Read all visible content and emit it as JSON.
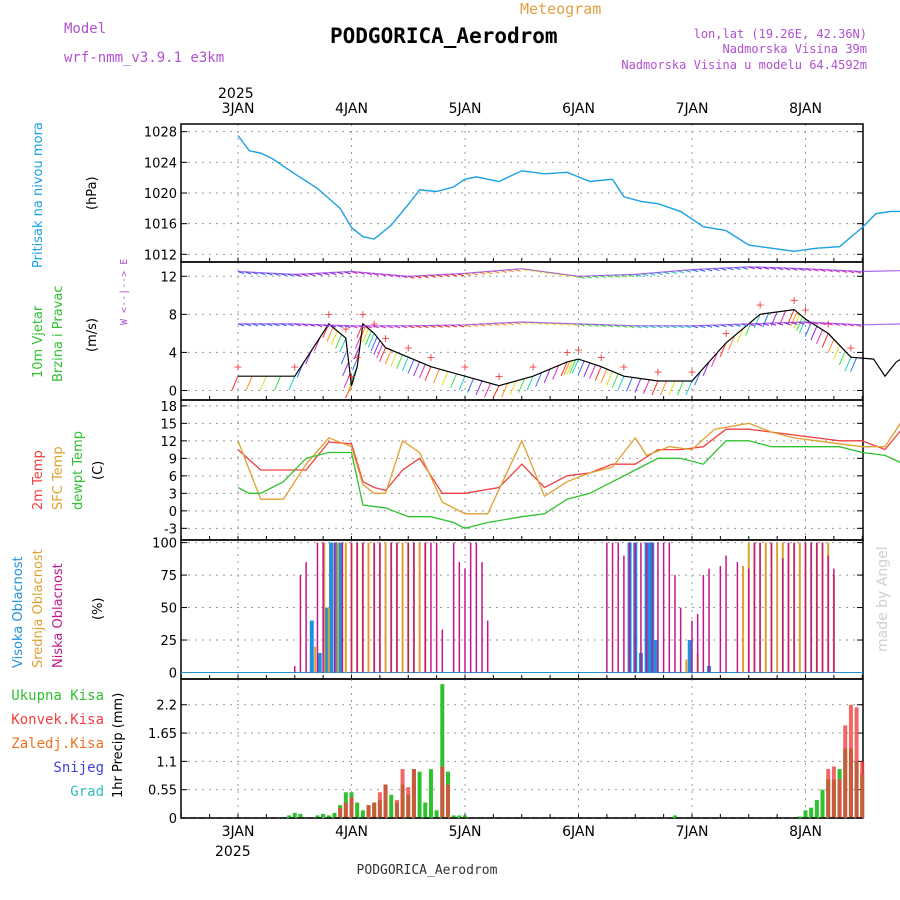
{
  "header": {
    "model_label": "Model",
    "model_name": "wrf-nmm_v3.9.1 e3km",
    "meteogram_label": "Meteogram",
    "station": "PODGORICA_Aerodrom",
    "lonlat": "lon,lat (19.26E, 42.36N)",
    "elevation": "Nadmorska Visina 39m",
    "model_elevation": "Nadmorska Visina u modelu 64.4592m",
    "year_top": "2025",
    "year_bottom": "2025",
    "footer_station": "PODGORICA_Aerodrom",
    "credit": "made by Angel"
  },
  "days": [
    "3JAN",
    "4JAN",
    "5JAN",
    "6JAN",
    "7JAN",
    "8JAN"
  ],
  "colors": {
    "pressure": "#1ba1e2",
    "temp2m": "#f04040",
    "sfc": "#e0a030",
    "dewpt": "#30c030",
    "high": "#1e90e0",
    "mid": "#e0a030",
    "low": "#c0188c",
    "total": "#30c030",
    "conv": "#f04040",
    "frz": "#f07020",
    "snow": "#4040e0",
    "hail": "#30c0c0",
    "windspd": "#000000",
    "windline": "#8a2be2"
  },
  "chart_data": [
    {
      "type": "line",
      "id": "pressure",
      "ylabel_title": "Pritisak na nivou mora",
      "ylabel_unit": "(hPa)",
      "ylim": [
        1011,
        1029
      ],
      "yticks": [
        1012,
        1016,
        1020,
        1024,
        1028
      ],
      "x": [
        0,
        0.1,
        0.2,
        0.3,
        0.5,
        0.7,
        0.9,
        1.0,
        1.1,
        1.2,
        1.35,
        1.5,
        1.6,
        1.75,
        1.9,
        2.0,
        2.1,
        2.3,
        2.5,
        2.7,
        2.9,
        3.1,
        3.3,
        3.4,
        3.55,
        3.7,
        3.9,
        4.1,
        4.3,
        4.5,
        4.7,
        4.9,
        5.1,
        5.3,
        5.5,
        5.62,
        5.75,
        5.87
      ],
      "values": [
        1027.5,
        1025.5,
        1025.2,
        1024.5,
        1022.5,
        1020.6,
        1018.0,
        1015.5,
        1014.3,
        1014.0,
        1015.8,
        1018.5,
        1020.4,
        1020.2,
        1020.8,
        1021.8,
        1022.1,
        1021.5,
        1022.9,
        1022.5,
        1022.7,
        1021.5,
        1021.8,
        1019.5,
        1018.9,
        1018.6,
        1017.6,
        1015.6,
        1015.1,
        1013.2,
        1012.8,
        1012.4,
        1012.8,
        1013.0,
        1015.5,
        1017.3,
        1017.6,
        1017.6
      ]
    },
    {
      "type": "wind",
      "id": "wind",
      "ylabel_title": "10m Vjetar Brzina i Pravac",
      "ylabel_unit": "(m/s)",
      "compass": "W <--|--> E",
      "ylim": [
        -1,
        13.5
      ],
      "yticks": [
        0,
        4,
        8,
        12
      ],
      "series": [
        {
          "name": "speed",
          "x": [
            0,
            0.5,
            0.8,
            0.95,
            1.0,
            1.05,
            1.1,
            1.2,
            1.3,
            1.5,
            1.7,
            2.0,
            2.3,
            2.6,
            2.9,
            3.0,
            3.2,
            3.4,
            3.7,
            4.0,
            4.3,
            4.6,
            4.9,
            5.0,
            5.2,
            5.4,
            5.6,
            5.7,
            5.8,
            5.87
          ],
          "values": [
            1.5,
            1.5,
            7,
            5.5,
            0.5,
            2.5,
            7,
            6,
            4.5,
            3.5,
            2.5,
            1.5,
            0.5,
            1.5,
            3,
            3.3,
            2.5,
            1.5,
            1,
            1,
            5,
            8,
            8.5,
            7.5,
            6,
            3.5,
            3.3,
            1.5,
            3,
            3.5
          ]
        },
        {
          "name": "upper",
          "x": [
            0,
            0.5,
            1.0,
            1.5,
            2.0,
            2.5,
            3.0,
            3.5,
            4.0,
            4.5,
            5.0,
            5.5,
            5.87
          ],
          "values": [
            12.5,
            12.2,
            12.5,
            12.0,
            12.3,
            12.8,
            12.0,
            12.2,
            12.7,
            13.0,
            12.8,
            12.5,
            12.6
          ]
        },
        {
          "name": "middle",
          "x": [
            0,
            0.5,
            1.0,
            1.5,
            2.0,
            2.5,
            3.0,
            3.5,
            4.0,
            4.5,
            5.0,
            5.5,
            5.87
          ],
          "values": [
            7.0,
            7.0,
            6.8,
            6.8,
            6.9,
            7.2,
            7.0,
            6.8,
            6.8,
            7.0,
            7.2,
            6.9,
            7.0
          ]
        }
      ]
    },
    {
      "type": "line",
      "id": "temperature",
      "ylabel_title": [
        "2m Temp",
        "SFC Temp",
        "dewpt Temp"
      ],
      "ylabel_unit": "(C)",
      "ylim": [
        -5,
        19
      ],
      "yticks": [
        -3,
        0,
        3,
        6,
        9,
        12,
        15,
        18
      ],
      "series": [
        {
          "name": "2m Temp",
          "x": [
            0,
            0.2,
            0.4,
            0.6,
            0.8,
            1.0,
            1.1,
            1.2,
            1.3,
            1.45,
            1.6,
            1.8,
            2.0,
            2.3,
            2.5,
            2.7,
            2.9,
            3.1,
            3.3,
            3.5,
            3.7,
            3.9,
            4.1,
            4.3,
            4.5,
            4.7,
            4.9,
            5.1,
            5.3,
            5.5,
            5.7,
            5.87
          ],
          "values": [
            10.5,
            7,
            7,
            7,
            11.8,
            11.5,
            5,
            4,
            3.5,
            7,
            9,
            3,
            3,
            4,
            8,
            4,
            6,
            6.5,
            8,
            8,
            10.5,
            10.5,
            11,
            14,
            14,
            13.5,
            13,
            12.5,
            12,
            12,
            10.5,
            14.5
          ]
        },
        {
          "name": "SFC Temp",
          "x": [
            0,
            0.2,
            0.4,
            0.6,
            0.8,
            1.0,
            1.1,
            1.2,
            1.3,
            1.45,
            1.6,
            1.8,
            2.0,
            2.2,
            2.5,
            2.7,
            2.9,
            3.1,
            3.3,
            3.5,
            3.6,
            3.8,
            4.0,
            4.2,
            4.5,
            4.7,
            4.9,
            5.1,
            5.3,
            5.5,
            5.7,
            5.87
          ],
          "values": [
            12,
            2,
            2,
            8,
            12.5,
            11,
            4.5,
            3,
            3,
            12,
            10,
            1.5,
            -0.5,
            -0.5,
            12,
            2.5,
            5,
            6.5,
            7.5,
            12.5,
            9.5,
            11,
            10.5,
            14,
            15,
            13.5,
            12.5,
            12,
            11.5,
            11,
            11,
            16
          ]
        },
        {
          "name": "dewpt Temp",
          "x": [
            0,
            0.1,
            0.2,
            0.4,
            0.6,
            0.8,
            1.0,
            1.1,
            1.3,
            1.5,
            1.7,
            1.9,
            2.0,
            2.2,
            2.5,
            2.7,
            2.9,
            3.1,
            3.3,
            3.5,
            3.7,
            3.9,
            4.1,
            4.3,
            4.5,
            4.7,
            4.9,
            5.1,
            5.3,
            5.5,
            5.7,
            5.87
          ],
          "values": [
            4,
            3,
            3,
            5,
            9,
            10,
            10,
            1,
            0.5,
            -1,
            -1,
            -2,
            -3,
            -2,
            -1,
            -0.5,
            2,
            3,
            5,
            7,
            9,
            9,
            8,
            12,
            12,
            11,
            11,
            11,
            11,
            10,
            9.5,
            8
          ]
        }
      ]
    },
    {
      "type": "bar",
      "id": "clouds",
      "ylabel_title": [
        "Visoka Oblacnost",
        "Srednja Oblacnost",
        "Niska Oblacnost"
      ],
      "ylabel_unit": "(%)",
      "ylim": [
        -5,
        102
      ],
      "yticks": [
        0,
        25,
        50,
        75,
        100
      ],
      "series": [
        {
          "name": "Visoka Oblacnost",
          "x": [
            0.65,
            0.72,
            0.78,
            0.82,
            0.86,
            0.9,
            3.45,
            3.5,
            3.55,
            3.6,
            3.62,
            3.65,
            3.68,
            3.98,
            4.15
          ],
          "values": [
            40,
            15,
            50,
            100,
            100,
            100,
            100,
            100,
            15,
            100,
            100,
            100,
            25,
            25,
            5
          ]
        },
        {
          "name": "Srednja Oblacnost",
          "x": [
            0.68,
            0.76,
            0.8,
            0.88,
            0.95,
            1.0,
            1.05,
            1.1,
            1.15,
            1.2,
            1.25,
            1.3,
            1.35,
            1.4,
            1.45,
            1.5,
            1.55,
            1.6,
            1.65,
            3.95,
            4.05,
            4.45,
            4.5,
            4.55,
            4.6,
            4.65,
            4.7,
            4.75,
            4.8,
            4.85,
            4.9,
            4.95,
            5.0,
            5.05,
            5.1,
            5.15,
            5.2,
            5.25
          ],
          "values": [
            20,
            100,
            50,
            100,
            100,
            100,
            100,
            100,
            100,
            100,
            100,
            100,
            100,
            100,
            100,
            100,
            100,
            100,
            100,
            10,
            15,
            82,
            100,
            100,
            100,
            100,
            100,
            100,
            100,
            100,
            100,
            100,
            100,
            100,
            100,
            100,
            100,
            75
          ]
        },
        {
          "name": "Niska Oblacnost",
          "x": [
            0.5,
            0.55,
            0.6,
            0.7,
            0.75,
            0.85,
            0.92,
            1.0,
            1.05,
            1.1,
            1.2,
            1.25,
            1.35,
            1.4,
            1.5,
            1.55,
            1.65,
            1.7,
            1.75,
            1.8,
            1.9,
            1.95,
            2.0,
            2.05,
            2.1,
            2.15,
            2.2,
            3.25,
            3.3,
            3.35,
            3.4,
            3.45,
            3.5,
            3.55,
            3.6,
            3.65,
            3.7,
            3.75,
            3.8,
            3.85,
            3.9,
            4.0,
            4.05,
            4.1,
            4.15,
            4.25,
            4.3,
            4.4,
            4.5,
            4.55,
            4.6,
            4.7,
            4.8,
            4.85,
            4.9,
            5.0,
            5.05,
            5.1,
            5.15,
            5.2,
            5.25,
            5.55,
            5.6
          ],
          "values": [
            5,
            75,
            85,
            100,
            100,
            100,
            100,
            100,
            100,
            100,
            100,
            100,
            100,
            100,
            100,
            100,
            100,
            100,
            100,
            33,
            100,
            85,
            80,
            100,
            100,
            85,
            40,
            100,
            100,
            100,
            90,
            100,
            100,
            100,
            100,
            100,
            100,
            100,
            100,
            75,
            50,
            40,
            45,
            75,
            80,
            82,
            90,
            85,
            80,
            100,
            100,
            100,
            88,
            100,
            100,
            100,
            100,
            100,
            100,
            90,
            80,
            8,
            6
          ]
        }
      ]
    },
    {
      "type": "bar",
      "id": "precip",
      "ylabel_title": "1hr Precip (mm)",
      "legend": [
        "Ukupna Kisa",
        "Konvek.Kisa",
        "Zaledj.Kisa",
        "Snijeg",
        "Grad"
      ],
      "ylim": [
        0,
        2.7
      ],
      "yticks": [
        0,
        0.55,
        1.1,
        1.65,
        2.2
      ],
      "series": [
        {
          "name": "Ukupna Kisa",
          "x": [
            0.45,
            0.5,
            0.55,
            0.7,
            0.75,
            0.8,
            0.85,
            0.9,
            0.95,
            1.0,
            1.05,
            1.1,
            1.15,
            1.2,
            1.25,
            1.3,
            1.35,
            1.4,
            1.45,
            1.5,
            1.55,
            1.6,
            1.65,
            1.7,
            1.75,
            1.8,
            1.85,
            1.9,
            1.95,
            2.0,
            3.85,
            4.95,
            5.0,
            5.05,
            5.1,
            5.15,
            5.2,
            5.25,
            5.3,
            5.35,
            5.4,
            5.45,
            5.5,
            5.55,
            5.6,
            5.65,
            5.7,
            5.75
          ],
          "values": [
            0.05,
            0.1,
            0.08,
            0.05,
            0.08,
            0.05,
            0.1,
            0.25,
            0.5,
            0.5,
            0.3,
            0.15,
            0.25,
            0.3,
            0.35,
            0.65,
            0.45,
            0.3,
            0.65,
            0.45,
            0.95,
            0.9,
            0.3,
            0.95,
            0.15,
            2.6,
            0.9,
            0.05,
            0.05,
            0.05,
            0.05,
            0.03,
            0.15,
            0.2,
            0.35,
            0.55,
            0.75,
            0.75,
            0.95,
            1.35,
            1.35,
            1.1,
            0.85,
            1.2,
            0.55,
            0.25,
            0.15,
            0.08
          ]
        },
        {
          "name": "Konvek.Kisa",
          "x": [
            0.9,
            0.95,
            1.0,
            1.15,
            1.2,
            1.25,
            1.3,
            1.4,
            1.45,
            1.5,
            1.55,
            1.8,
            1.85,
            5.2,
            5.25,
            5.3,
            5.35,
            5.4,
            5.45,
            5.5,
            5.55,
            5.6,
            5.65,
            5.7
          ],
          "values": [
            0.2,
            0.3,
            0.4,
            0.25,
            0.3,
            0.5,
            0.65,
            0.35,
            0.95,
            0.6,
            0.95,
            1.0,
            0.65,
            0.95,
            1.0,
            0.75,
            1.8,
            2.2,
            2.15,
            1.1,
            1.2,
            0.55,
            0.2,
            0.12
          ]
        }
      ]
    }
  ]
}
